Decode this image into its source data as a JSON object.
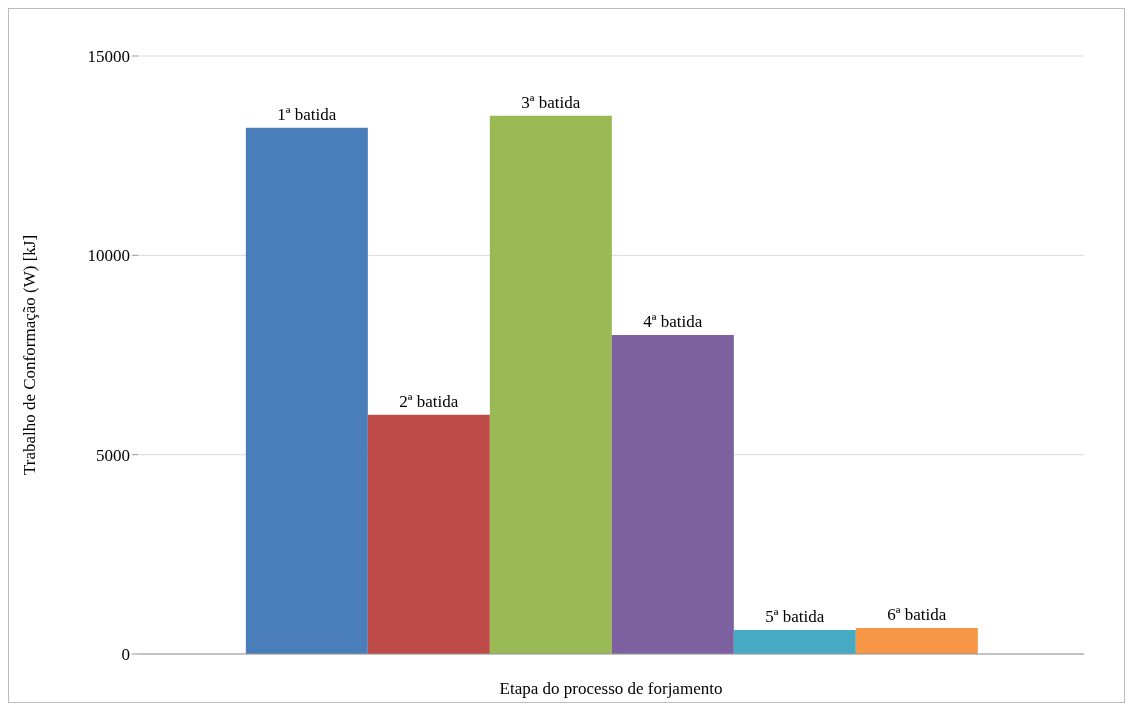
{
  "chart_data": {
    "type": "bar",
    "xlabel": "Etapa do processo de forjamento",
    "ylabel": "Trabalho de Conformação (W) [kJ]",
    "categories": [
      null
    ],
    "series": [
      {
        "name": "1ª batida",
        "color": "#4a7ebb",
        "values": [
          13200
        ]
      },
      {
        "name": "2ª batida",
        "color": "#be4b48",
        "values": [
          6000
        ]
      },
      {
        "name": "3ª batida",
        "color": "#98b954",
        "values": [
          13500
        ]
      },
      {
        "name": "4ª batida",
        "color": "#7d60a0",
        "values": [
          8000
        ]
      },
      {
        "name": "5ª batida",
        "color": "#46aac5",
        "values": [
          600
        ]
      },
      {
        "name": "6ª batida",
        "color": "#f79646",
        "values": [
          650
        ]
      }
    ],
    "ylim": [
      0,
      15000
    ],
    "yticks": [
      0,
      5000,
      10000,
      15000
    ],
    "grid": "y",
    "legend": false
  }
}
